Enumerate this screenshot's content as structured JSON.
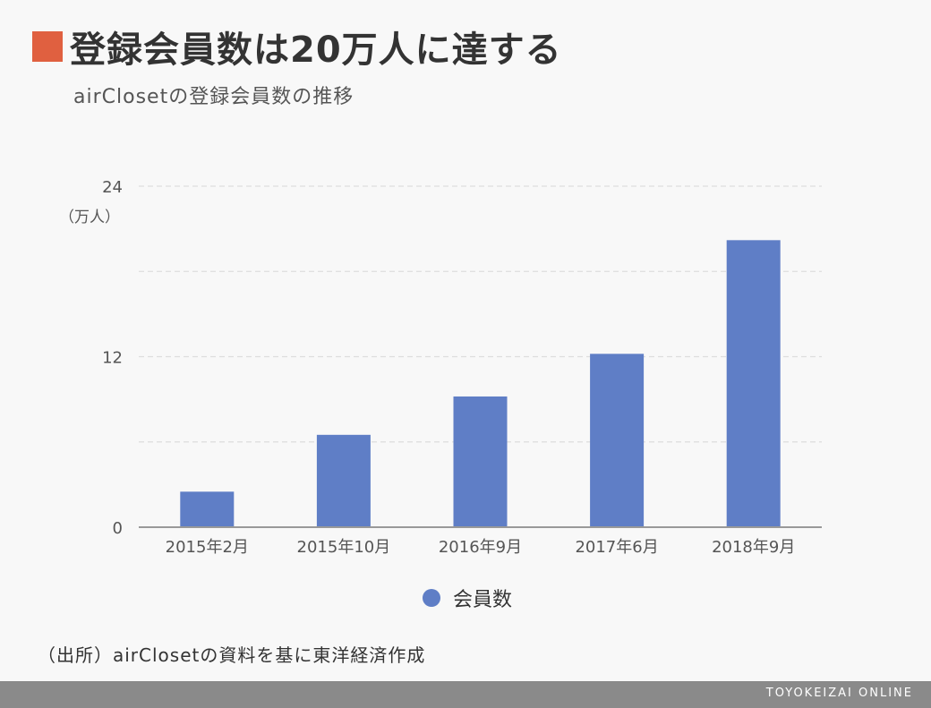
{
  "header": {
    "title": "登録会員数は20万人に達する",
    "subtitle": "airClosetの登録会員数の推移"
  },
  "chart_data": {
    "type": "bar",
    "categories": [
      "2015年2月",
      "2015年10月",
      "2016年9月",
      "2017年6月",
      "2018年9月"
    ],
    "series": [
      {
        "name": "会員数",
        "values": [
          2.5,
          6.5,
          9.2,
          12.2,
          20.2
        ]
      }
    ],
    "ylabel": "（万人）",
    "ylim": [
      0,
      24
    ],
    "yticks": [
      "0",
      "12",
      "24"
    ],
    "grid": true,
    "legend": "bottom",
    "colors": {
      "bar": "#5f7ec6",
      "grid": "#dddddd",
      "axis": "#999999"
    }
  },
  "legend": {
    "label": "会員数"
  },
  "source_note": "（出所）airClosetの資料を基に東洋経済作成",
  "footer": {
    "brand": "TOYOKEIZAI ONLINE"
  }
}
